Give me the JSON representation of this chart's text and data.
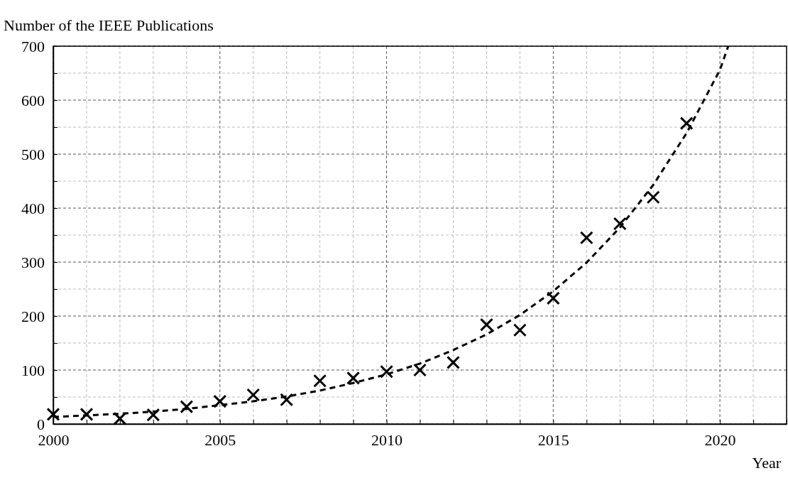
{
  "chart_data": {
    "type": "scatter",
    "ylabel": "Number of the IEEE Publications",
    "xlabel": "Year",
    "xlim": [
      2000,
      2022
    ],
    "ylim": [
      0,
      700
    ],
    "xticks": [
      2000,
      {
        "value": 2001,
        "label": null
      },
      {
        "value": 2002,
        "label": null
      },
      {
        "value": 2003,
        "label": null
      },
      {
        "value": 2004,
        "label": null
      },
      2005,
      {
        "value": 2006,
        "label": null
      },
      {
        "value": 2007,
        "label": null
      },
      {
        "value": 2008,
        "label": null
      },
      {
        "value": 2009,
        "label": null
      },
      2010,
      {
        "value": 2011,
        "label": null
      },
      {
        "value": 2012,
        "label": null
      },
      {
        "value": 2013,
        "label": null
      },
      {
        "value": 2014,
        "label": null
      },
      2015,
      {
        "value": 2016,
        "label": null
      },
      {
        "value": 2017,
        "label": null
      },
      {
        "value": 2018,
        "label": null
      },
      {
        "value": 2019,
        "label": null
      },
      2020,
      {
        "value": 2021,
        "label": null
      },
      {
        "value": 2022,
        "label": null
      }
    ],
    "yticks": [
      0,
      {
        "value": 50,
        "label": null
      },
      100,
      {
        "value": 150,
        "label": null
      },
      200,
      {
        "value": 250,
        "label": null
      },
      300,
      {
        "value": 350,
        "label": null
      },
      400,
      {
        "value": 450,
        "label": null
      },
      500,
      {
        "value": 550,
        "label": null
      },
      600,
      {
        "value": 650,
        "label": null
      },
      700
    ],
    "grid": true,
    "series": [
      {
        "color": "#000000",
        "marker": "cross",
        "x": [
          2000,
          2001,
          2002,
          2003,
          2004,
          2005,
          2006,
          2007,
          2008,
          2009,
          2010,
          2011,
          2012,
          2013,
          2014,
          2015,
          2016,
          2017,
          2018,
          2019
        ],
        "values": [
          18,
          18,
          10,
          17,
          32,
          42,
          54,
          45,
          80,
          85,
          97,
          100,
          114,
          184,
          174,
          233,
          345,
          371,
          420,
          557
        ]
      },
      {
        "type": "line",
        "color": "#000000",
        "marker": "none",
        "line_style": "dashed",
        "x": [
          2000,
          2001,
          2002,
          2003,
          2004,
          2005,
          2006,
          2007,
          2008,
          2009,
          2010,
          2011,
          2012,
          2013,
          2014,
          2015,
          2016,
          2017,
          2018,
          2019,
          2020,
          2020.25
        ],
        "values": [
          13,
          16,
          19,
          23,
          28,
          35,
          42,
          51,
          62,
          76,
          92,
          112,
          137,
          166,
          202,
          246,
          299,
          364,
          443,
          539,
          656,
          700
        ]
      }
    ]
  }
}
